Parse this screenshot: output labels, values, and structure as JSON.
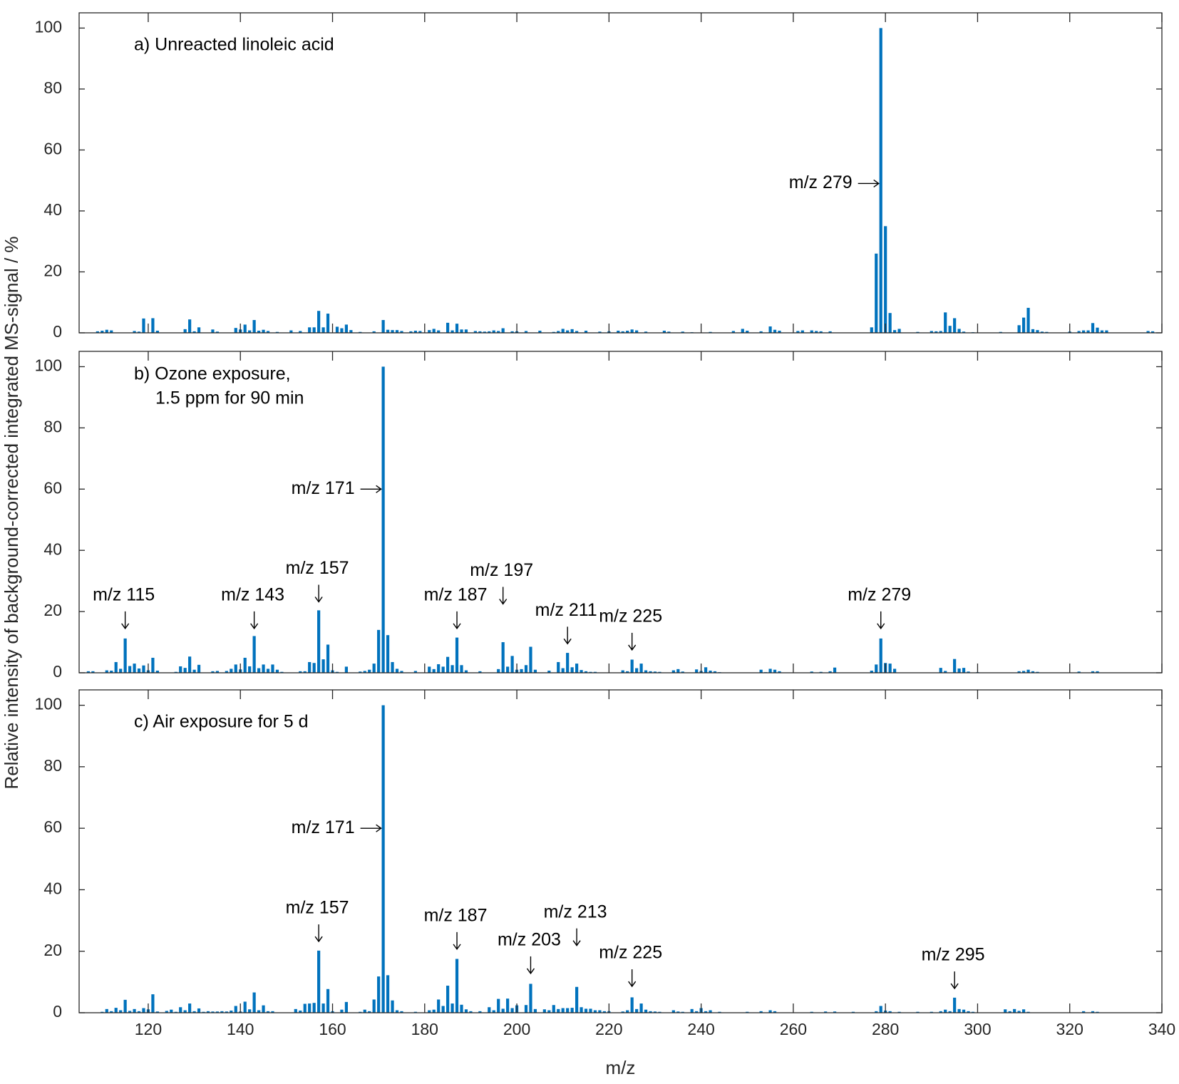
{
  "chart_data": [
    {
      "type": "bar",
      "label": [
        "a) Unreacted linoleic acid"
      ],
      "color": "#0072BD",
      "x": [
        109,
        110,
        111,
        112,
        117,
        118,
        119,
        121,
        122,
        128,
        129,
        130,
        131,
        134,
        135,
        139,
        140,
        141,
        142,
        143,
        144,
        145,
        146,
        148,
        151,
        153,
        155,
        156,
        157,
        158,
        159,
        161,
        162,
        163,
        164,
        166,
        169,
        171,
        172,
        173,
        174,
        175,
        177,
        178,
        179,
        181,
        182,
        183,
        185,
        186,
        187,
        188,
        189,
        191,
        192,
        193,
        194,
        195,
        196,
        197,
        199,
        200,
        202,
        205,
        208,
        209,
        210,
        211,
        212,
        213,
        215,
        218,
        220,
        222,
        223,
        224,
        225,
        226,
        228,
        232,
        233,
        236,
        238,
        242,
        247,
        249,
        250,
        253,
        255,
        256,
        257,
        261,
        262,
        264,
        265,
        266,
        268,
        277,
        278,
        279,
        280,
        281,
        282,
        283,
        287,
        290,
        291,
        292,
        293,
        294,
        295,
        296,
        297,
        299,
        305,
        309,
        310,
        311,
        312,
        313,
        314,
        315,
        320,
        322,
        323,
        324,
        325,
        326,
        327,
        328,
        337,
        338
      ],
      "values": [
        0.5,
        0.7,
        1,
        0.8,
        0.6,
        0.4,
        4.7,
        4.8,
        0.7,
        1.2,
        4.4,
        0.5,
        1.8,
        1.1,
        0.4,
        1.6,
        1.1,
        2.7,
        0.8,
        4.2,
        0.7,
        1,
        0.6,
        0.3,
        0.8,
        0.6,
        1.8,
        1.8,
        7.2,
        1.8,
        6.3,
        2,
        1.5,
        2.7,
        0.9,
        0.3,
        0.5,
        4.2,
        1,
        0.9,
        0.9,
        0.6,
        0.5,
        0.7,
        0.6,
        0.9,
        1.3,
        0.8,
        3.3,
        0.8,
        3,
        1.1,
        1.1,
        0.6,
        0.5,
        0.4,
        0.5,
        0.8,
        0.6,
        1.5,
        0.5,
        0.5,
        0.6,
        0.7,
        0.3,
        0.6,
        1.3,
        0.8,
        1.2,
        0.6,
        0.7,
        0.4,
        0.5,
        0.7,
        0.5,
        0.7,
        1.1,
        0.8,
        0.4,
        0.7,
        0.4,
        0.4,
        0.2,
        0.3,
        0.6,
        1.3,
        0.7,
        0.5,
        2.1,
        1,
        0.7,
        0.6,
        0.8,
        0.8,
        0.6,
        0.5,
        0.5,
        1.8,
        26,
        100,
        35,
        6.5,
        0.9,
        1.3,
        0.3,
        0.6,
        0.5,
        0.6,
        6.7,
        2.3,
        4.8,
        1.3,
        0.4,
        0.2,
        0.3,
        2.5,
        5,
        8.2,
        1.2,
        0.9,
        0.4,
        0.3,
        0.4,
        0.6,
        0.8,
        0.8,
        3.2,
        1.7,
        0.8,
        0.8,
        0.6,
        0.5
      ],
      "xlim": [
        105,
        340
      ],
      "ylim": [
        0,
        105
      ],
      "xticks": [
        120,
        140,
        160,
        180,
        200,
        220,
        240,
        260,
        280,
        300,
        320,
        340
      ],
      "yticks": [
        0,
        20,
        40,
        60,
        80,
        100
      ],
      "show_xtick_labels": false,
      "annotations": [
        {
          "text": "m/z 279",
          "x": 279,
          "y": 49,
          "arrow": "right"
        }
      ]
    },
    {
      "type": "bar",
      "label": [
        "b) Ozone exposure,",
        "1.5 ppm for 90 min"
      ],
      "color": "#0072BD",
      "ylabel": "Relative intensity of background-corrected integrated MS-signal / %",
      "x": [
        107,
        108,
        111,
        112,
        113,
        114,
        115,
        116,
        117,
        118,
        119,
        120,
        121,
        122,
        126,
        127,
        128,
        129,
        130,
        131,
        134,
        135,
        137,
        138,
        139,
        140,
        141,
        142,
        143,
        144,
        145,
        146,
        147,
        148,
        149,
        153,
        154,
        155,
        156,
        157,
        158,
        159,
        160,
        161,
        163,
        166,
        167,
        168,
        169,
        170,
        171,
        172,
        173,
        174,
        175,
        178,
        181,
        182,
        183,
        184,
        185,
        186,
        187,
        188,
        189,
        192,
        196,
        197,
        198,
        199,
        200,
        201,
        202,
        203,
        204,
        207,
        209,
        210,
        211,
        212,
        213,
        214,
        215,
        216,
        217,
        223,
        224,
        225,
        226,
        227,
        228,
        229,
        230,
        231,
        234,
        235,
        236,
        239,
        240,
        241,
        242,
        243,
        244,
        253,
        254,
        255,
        256,
        257,
        264,
        266,
        268,
        269,
        277,
        278,
        279,
        280,
        281,
        282,
        292,
        293,
        295,
        296,
        297,
        298,
        300,
        309,
        310,
        311,
        312,
        313,
        322,
        325,
        326
      ],
      "values": [
        0.5,
        0.5,
        0.8,
        0.7,
        3.5,
        1.3,
        11.2,
        2.2,
        3,
        1.4,
        2.4,
        0.8,
        4.9,
        0.7,
        0.3,
        2.1,
        1.6,
        5.3,
        1,
        2.6,
        0.5,
        0.6,
        0.6,
        1.3,
        2.7,
        1.1,
        4.9,
        2.1,
        12,
        1.5,
        2.7,
        1.3,
        2.7,
        1,
        0.3,
        0.5,
        0.5,
        3.5,
        3.2,
        20.4,
        4.4,
        9.2,
        0.8,
        0.3,
        2,
        0.4,
        0.6,
        1,
        3,
        14,
        100,
        12.3,
        3.5,
        1.3,
        0.6,
        0.6,
        2,
        1.2,
        2.8,
        2,
        5.2,
        2.5,
        11.5,
        2.5,
        0.8,
        0.5,
        1.2,
        10,
        2,
        5.5,
        1,
        1.2,
        2.5,
        8.5,
        1,
        0.7,
        3.5,
        1.5,
        6.5,
        1.8,
        3,
        0.9,
        0.5,
        0.3,
        0.3,
        0.8,
        0.5,
        4.3,
        1.5,
        3,
        0.8,
        0.5,
        0.4,
        0.3,
        0.8,
        1.2,
        0.4,
        1.1,
        0.6,
        1.8,
        0.7,
        0.5,
        0.2,
        1,
        0.2,
        1.3,
        1,
        0.5,
        0.4,
        0.3,
        0.5,
        1.7,
        0.7,
        2.7,
        11.2,
        3.2,
        3,
        1.3,
        1.6,
        0.6,
        4.5,
        1.4,
        1.6,
        0.4,
        0.2,
        0.5,
        0.6,
        1,
        0.5,
        0.3,
        0.4,
        0.5,
        0.5
      ],
      "xlim": [
        105,
        340
      ],
      "ylim": [
        0,
        105
      ],
      "xticks": [
        120,
        140,
        160,
        180,
        200,
        220,
        240,
        260,
        280,
        300,
        320,
        340
      ],
      "yticks": [
        0,
        20,
        40,
        60,
        80,
        100
      ],
      "show_xtick_labels": false,
      "annotations": [
        {
          "text": "m/z 115",
          "x": 115,
          "y": 14,
          "arrow": "down"
        },
        {
          "text": "m/z 143",
          "x": 143,
          "y": 14,
          "arrow": "down"
        },
        {
          "text": "m/z 157",
          "x": 157,
          "y": 22.7,
          "arrow": "down"
        },
        {
          "text": "m/z 171",
          "x": 171,
          "y": 60,
          "arrow": "right"
        },
        {
          "text": "m/z 187",
          "x": 187,
          "y": 14,
          "arrow": "down"
        },
        {
          "text": "m/z 197",
          "x": 197,
          "y": 22,
          "arrow": "down"
        },
        {
          "text": "m/z 211",
          "x": 211,
          "y": 9,
          "arrow": "down"
        },
        {
          "text": "m/z 225",
          "x": 225,
          "y": 7,
          "arrow": "down"
        },
        {
          "text": "m/z 279",
          "x": 279,
          "y": 14,
          "arrow": "down"
        }
      ]
    },
    {
      "type": "bar",
      "label": [
        "c) Air exposure for 5 d"
      ],
      "color": "#0072BD",
      "xlabel": "m/z",
      "x": [
        110,
        111,
        112,
        113,
        114,
        115,
        116,
        117,
        118,
        119,
        120,
        121,
        122,
        124,
        125,
        126,
        127,
        128,
        129,
        130,
        131,
        132,
        133,
        134,
        135,
        136,
        137,
        138,
        139,
        140,
        141,
        142,
        143,
        144,
        145,
        146,
        147,
        152,
        153,
        154,
        155,
        156,
        157,
        158,
        159,
        160,
        162,
        163,
        166,
        167,
        168,
        169,
        170,
        171,
        172,
        173,
        174,
        175,
        178,
        181,
        182,
        183,
        184,
        185,
        186,
        187,
        188,
        189,
        190,
        192,
        194,
        195,
        196,
        197,
        198,
        199,
        200,
        202,
        203,
        204,
        206,
        207,
        208,
        209,
        210,
        211,
        212,
        213,
        214,
        215,
        216,
        217,
        218,
        219,
        220,
        223,
        224,
        225,
        226,
        227,
        228,
        229,
        230,
        231,
        234,
        235,
        236,
        238,
        239,
        240,
        241,
        242,
        244,
        250,
        253,
        255,
        256,
        264,
        267,
        269,
        273,
        278,
        279,
        280,
        281,
        283,
        287,
        290,
        292,
        293,
        294,
        295,
        296,
        297,
        298,
        299,
        306,
        307,
        308,
        309,
        310,
        311,
        323,
        325,
        326
      ],
      "values": [
        0.3,
        1.2,
        0.5,
        1.6,
        0.8,
        4.2,
        0.6,
        1.2,
        0.5,
        1.5,
        1.1,
        6,
        0.4,
        0.6,
        1,
        0.3,
        1.8,
        0.8,
        3,
        0.5,
        1.4,
        0.3,
        0.5,
        0.4,
        0.4,
        0.5,
        0.4,
        0.7,
        2.2,
        0.4,
        3.6,
        1.1,
        6.6,
        0.8,
        2.4,
        0.5,
        0.5,
        1.2,
        0.7,
        2.9,
        3,
        3.2,
        20.2,
        3,
        7.7,
        0.5,
        1,
        3.5,
        0.3,
        1,
        0.5,
        4.3,
        11.8,
        100,
        12.2,
        4,
        0.8,
        0.5,
        0.3,
        0.8,
        1,
        4.3,
        2.2,
        8.8,
        3,
        17.5,
        2.6,
        1.1,
        0.5,
        0.5,
        1.8,
        0.8,
        4.5,
        1.3,
        4.6,
        1.5,
        2.4,
        2.5,
        9.4,
        1.2,
        1.1,
        0.8,
        2.5,
        1.2,
        1.5,
        1.5,
        1.6,
        8.4,
        1.8,
        1.3,
        1.3,
        0.8,
        0.8,
        0.5,
        0.5,
        0.4,
        0.8,
        5,
        1.2,
        3,
        1,
        0.5,
        0.4,
        0.3,
        0.8,
        0.4,
        0.3,
        1.2,
        0.5,
        1.5,
        0.5,
        0.8,
        0.3,
        0.3,
        0.5,
        0.8,
        0.5,
        0.3,
        0.4,
        0.4,
        0.3,
        0.5,
        2.2,
        0.7,
        0.5,
        0.3,
        0.3,
        0.3,
        0.5,
        1,
        0.5,
        4.9,
        1.2,
        1,
        0.5,
        0.3,
        1.1,
        0.5,
        1.2,
        0.6,
        1.1,
        0.3,
        0.5,
        0.5,
        0.3
      ],
      "xlim": [
        105,
        340
      ],
      "ylim": [
        0,
        105
      ],
      "xticks": [
        120,
        140,
        160,
        180,
        200,
        220,
        240,
        260,
        280,
        300,
        320,
        340
      ],
      "yticks": [
        0,
        20,
        40,
        60,
        80,
        100
      ],
      "show_xtick_labels": true,
      "annotations": [
        {
          "text": "m/z 157",
          "x": 157,
          "y": 22.7,
          "arrow": "down"
        },
        {
          "text": "m/z 171",
          "x": 171,
          "y": 60,
          "arrow": "right"
        },
        {
          "text": "m/z 187",
          "x": 187,
          "y": 20.2,
          "arrow": "down"
        },
        {
          "text": "m/z 203",
          "x": 203,
          "y": 12.3,
          "arrow": "down"
        },
        {
          "text": "m/z 213",
          "x": 213,
          "y": 21.4,
          "arrow": "down"
        },
        {
          "text": "m/z 225",
          "x": 225,
          "y": 8.1,
          "arrow": "down"
        },
        {
          "text": "m/z 295",
          "x": 295,
          "y": 7.4,
          "arrow": "down"
        }
      ]
    }
  ]
}
